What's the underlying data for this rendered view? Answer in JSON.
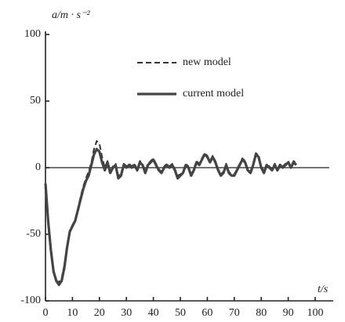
{
  "chart_data": {
    "type": "line",
    "y_label": "a/m · s⁻²",
    "x_label": "t/s",
    "x": [
      0,
      1,
      2,
      3,
      4,
      5,
      6,
      7,
      8,
      9,
      10,
      11,
      12,
      13,
      14,
      15,
      16,
      17,
      18,
      19,
      20,
      21,
      22,
      23,
      24,
      25,
      26,
      27,
      28,
      29,
      30,
      31,
      32,
      33,
      34,
      35,
      36,
      37,
      38,
      39,
      40,
      41,
      42,
      43,
      44,
      45,
      46,
      47,
      48,
      49,
      50,
      51,
      52,
      53,
      54,
      55,
      56,
      57,
      58,
      59,
      60,
      61,
      62,
      63,
      64,
      65,
      66,
      67,
      68,
      69,
      70,
      71,
      72,
      73,
      74,
      75,
      76,
      77,
      78,
      79,
      80,
      81,
      82,
      83,
      84,
      85,
      86,
      87,
      88,
      89,
      90,
      91,
      92,
      93
    ],
    "series": [
      {
        "name": "new model",
        "color": "#333333",
        "dashed": true,
        "values": [
          -14,
          -42,
          -64,
          -79,
          -85,
          -86,
          -83,
          -73,
          -59,
          -47,
          -43,
          -39,
          -31,
          -22,
          -14,
          -8,
          -3,
          4,
          14,
          20,
          18,
          8,
          0,
          5,
          -3,
          1,
          3,
          -6,
          -5,
          3,
          1,
          3,
          1,
          3,
          -1,
          5,
          3,
          -3,
          3,
          5,
          7,
          3,
          -1,
          -3,
          1,
          3,
          1,
          3,
          -1,
          -6,
          -5,
          -3,
          3,
          1,
          -5,
          -1,
          5,
          3,
          7,
          11,
          9,
          5,
          9,
          5,
          -1,
          -5,
          -3,
          3,
          -3,
          -5,
          -5,
          -1,
          3,
          7,
          5,
          -1,
          -3,
          3,
          11,
          9,
          1,
          -3,
          3,
          1,
          -1,
          3,
          -1,
          3,
          1,
          3,
          5,
          1,
          5,
          3
        ]
      },
      {
        "name": "current model",
        "color": "#444444",
        "dashed": false,
        "values": [
          -12,
          -40,
          -62,
          -78,
          -85,
          -88,
          -85,
          -75,
          -60,
          -48,
          -44,
          -40,
          -32,
          -24,
          -16,
          -10,
          -6,
          2,
          10,
          14,
          12,
          4,
          -2,
          4,
          -4,
          0,
          2,
          -8,
          -6,
          2,
          0,
          2,
          0,
          2,
          -2,
          4,
          2,
          -4,
          2,
          4,
          6,
          2,
          -2,
          -4,
          0,
          2,
          0,
          2,
          -2,
          -8,
          -6,
          -4,
          2,
          0,
          -6,
          -2,
          4,
          2,
          6,
          10,
          8,
          4,
          8,
          4,
          -2,
          -6,
          -4,
          2,
          -4,
          -6,
          -6,
          -2,
          2,
          6,
          4,
          -2,
          -4,
          2,
          10,
          8,
          0,
          -4,
          2,
          0,
          -2,
          2,
          -2,
          2,
          0,
          2,
          4,
          0,
          4,
          2
        ]
      }
    ],
    "xlim": [
      0,
      100
    ],
    "xticks": [
      0,
      10,
      20,
      30,
      40,
      50,
      60,
      70,
      80,
      90,
      100
    ],
    "ylim": [
      -100,
      100
    ],
    "yticks": [
      -100,
      -50,
      0,
      50,
      100
    ],
    "legend": "top center",
    "grid": false
  }
}
